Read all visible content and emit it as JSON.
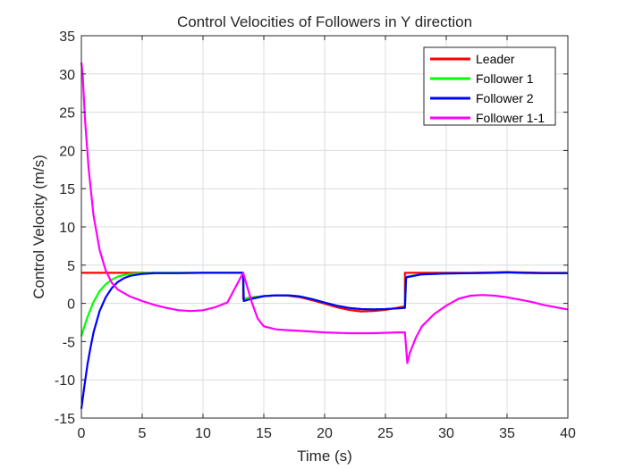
{
  "chart_data": {
    "type": "line",
    "title": "Control Velocities of Followers in Y direction",
    "xlabel": "Time (s)",
    "ylabel": "Control Velocity (m/s)",
    "xlim": [
      0,
      40
    ],
    "ylim": [
      -15,
      35
    ],
    "xticks": [
      0,
      5,
      10,
      15,
      20,
      25,
      30,
      35,
      40
    ],
    "yticks": [
      -15,
      -10,
      -5,
      0,
      5,
      10,
      15,
      20,
      25,
      30,
      35
    ],
    "grid": true,
    "legend_position": "top-right",
    "series": [
      {
        "name": "Leader",
        "color": "#ff0000",
        "x": [
          0,
          13.3,
          13.3,
          14,
          15,
          16,
          17,
          18,
          19,
          20,
          21,
          22,
          23,
          24,
          25,
          26.6,
          26.6,
          28,
          30,
          32,
          34,
          35,
          36,
          38,
          40
        ],
        "y": [
          4.0,
          4.0,
          0.6,
          0.8,
          0.95,
          1.05,
          1.0,
          0.8,
          0.4,
          -0.05,
          -0.5,
          -0.85,
          -1.05,
          -1.0,
          -0.85,
          -0.4,
          4.0,
          4.0,
          4.0,
          4.0,
          4.05,
          4.1,
          4.05,
          4.0,
          4.0
        ]
      },
      {
        "name": "Follower 1",
        "color": "#00ff00",
        "x": [
          0,
          0.25,
          0.5,
          0.75,
          1,
          1.5,
          2,
          2.5,
          3,
          3.5,
          4,
          5,
          6,
          8,
          10,
          12,
          13.3,
          13.35,
          14,
          15,
          16,
          17,
          18,
          19,
          20,
          21,
          22,
          23,
          24,
          25,
          26.6,
          26.7,
          28,
          30,
          32,
          34,
          35,
          36,
          38,
          40
        ],
        "y": [
          -4.3,
          -3.0,
          -1.8,
          -0.8,
          0.2,
          1.6,
          2.5,
          3.1,
          3.5,
          3.7,
          3.85,
          3.95,
          4.0,
          4.0,
          4.0,
          4.0,
          4.0,
          0.6,
          0.75,
          0.95,
          1.05,
          1.05,
          0.9,
          0.55,
          0.1,
          -0.3,
          -0.6,
          -0.75,
          -0.8,
          -0.75,
          -0.6,
          3.5,
          3.8,
          3.9,
          3.95,
          4.0,
          4.05,
          4.0,
          3.95,
          3.95
        ]
      },
      {
        "name": "Follower 2",
        "color": "#0000ff",
        "x": [
          0,
          0.25,
          0.5,
          0.75,
          1,
          1.5,
          2,
          2.5,
          3,
          3.5,
          4,
          5,
          6,
          8,
          10,
          12,
          13.3,
          13.35,
          14,
          15,
          16,
          17,
          18,
          19,
          20,
          21,
          22,
          23,
          24,
          25,
          26.6,
          26.7,
          28,
          30,
          32,
          34,
          35,
          36,
          38,
          40
        ],
        "y": [
          -13.8,
          -10.8,
          -8.0,
          -5.8,
          -3.8,
          -1.0,
          0.8,
          2.0,
          2.8,
          3.3,
          3.6,
          3.85,
          3.95,
          3.95,
          4.0,
          4.0,
          4.0,
          0.3,
          0.6,
          0.95,
          1.05,
          1.05,
          0.9,
          0.55,
          0.1,
          -0.3,
          -0.6,
          -0.75,
          -0.8,
          -0.75,
          -0.6,
          3.4,
          3.8,
          3.9,
          3.95,
          4.0,
          4.05,
          4.0,
          3.95,
          3.95
        ]
      },
      {
        "name": "Follower 1-1",
        "color": "#ff00ff",
        "x": [
          0,
          0.1,
          0.3,
          0.6,
          1,
          1.5,
          2,
          2.5,
          3,
          4,
          5,
          6,
          7,
          8,
          9,
          10,
          11,
          12,
          13.3,
          14,
          14.5,
          15,
          16,
          17,
          18,
          20,
          22,
          24,
          26,
          26.6,
          26.8,
          27,
          27.5,
          28,
          29,
          30,
          31,
          32,
          33,
          34,
          35,
          36,
          37,
          38,
          39,
          40
        ],
        "y": [
          31.5,
          30.0,
          24.0,
          17.5,
          11.5,
          7.0,
          4.3,
          2.7,
          1.8,
          0.9,
          0.3,
          -0.2,
          -0.6,
          -0.9,
          -1.0,
          -0.9,
          -0.5,
          0.1,
          4.0,
          0.2,
          -2.0,
          -3.0,
          -3.4,
          -3.5,
          -3.6,
          -3.8,
          -3.9,
          -3.9,
          -3.8,
          -3.8,
          -7.8,
          -6.5,
          -4.5,
          -3.0,
          -1.4,
          -0.3,
          0.6,
          1.0,
          1.1,
          1.0,
          0.8,
          0.5,
          0.2,
          -0.2,
          -0.5,
          -0.8
        ]
      }
    ]
  }
}
